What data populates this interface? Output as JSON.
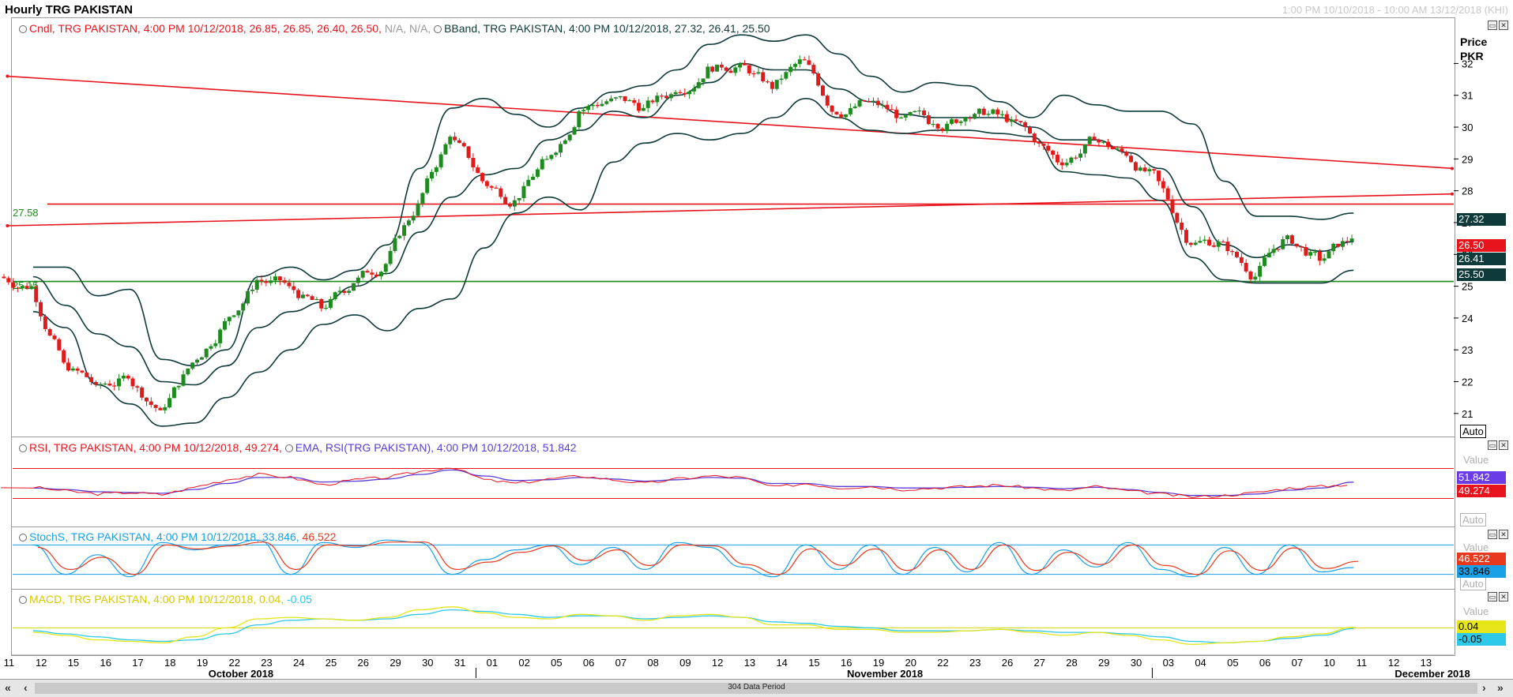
{
  "header": {
    "title": "Hourly TRG PAKISTAN",
    "date_range": "1:00 PM 10/10/2018 - 10:00 AM 13/12/2018 (KHI)"
  },
  "price_panel": {
    "legend_candle": "Cndl, TRG PAKISTAN, 4:00 PM 10/12/2018, 26.85, 26.85, 26.40, 26.50, ",
    "legend_candle_na": "N/A, N/A, ",
    "legend_bband": "BBand, TRG PAKISTAN, 4:00 PM 10/12/2018, 27.32, 26.41, 25.50",
    "scale_title": "Price\nPKR",
    "scale_ticks": [
      "21",
      "22",
      "23",
      "24",
      "25",
      "26",
      "27",
      "28",
      "29",
      "30",
      "31",
      "32"
    ],
    "hline_upper_label": "27.58",
    "hline_lower_label": "25.15",
    "tags": {
      "bb_upper": "27.32",
      "close": "26.50",
      "bb_mid": "26.41",
      "bb_lower": "25.50"
    },
    "auto_label": "Auto"
  },
  "rsi_panel": {
    "legend_rsi": "RSI, TRG PAKISTAN, 4:00 PM 10/12/2018, 49.274, ",
    "legend_ema": "EMA, RSI(TRG PAKISTAN), 4:00 PM 10/12/2018, 51.842",
    "value_label": "Value",
    "tags": {
      "ema": "51.842",
      "rsi": "49.274"
    },
    "auto_label": "Auto"
  },
  "stoch_panel": {
    "legend_k": "StochS, TRG PAKISTAN, 4:00 PM 10/12/2018, 33.846, ",
    "legend_d": "46.522",
    "value_label": "Value",
    "tags": {
      "d": "46.522",
      "k": "33.846"
    },
    "auto_label": "Auto"
  },
  "macd_panel": {
    "legend_macd": "MACD, TRG PAKISTAN, 4:00 PM 10/12/2018, 0.04, ",
    "legend_signal": "-0.05",
    "value_label": "Value",
    "tags": {
      "macd": "0.04",
      "signal": "-0.05"
    }
  },
  "x_axis": {
    "ticks": [
      "11",
      "12",
      "15",
      "16",
      "17",
      "18",
      "19",
      "22",
      "23",
      "24",
      "25",
      "26",
      "29",
      "30",
      "31",
      "01",
      "02",
      "05",
      "06",
      "07",
      "08",
      "09",
      "12",
      "13",
      "14",
      "15",
      "16",
      "19",
      "20",
      "22",
      "23",
      "26",
      "27",
      "28",
      "29",
      "30",
      "03",
      "04",
      "05",
      "06",
      "07",
      "10",
      "11",
      "12",
      "13"
    ],
    "months": [
      "October 2018",
      "November 2018",
      "December 2018"
    ]
  },
  "scrollbar": {
    "label": "304 Data Period"
  },
  "colors": {
    "up": "#1f8a1f",
    "down": "#e01b1b",
    "bband": "#0f3a3a",
    "trend": "#e8141d",
    "support": "#1d8a1d",
    "rsi": "#e8141d",
    "ema": "#5a3cd6",
    "stoch_k": "#1aa0e6",
    "stoch_d": "#e8381d",
    "macd": "#e6e61a",
    "signal": "#2ec8e8"
  },
  "chart_data": [
    {
      "type": "candlestick",
      "title": "Hourly TRG PAKISTAN",
      "ylabel": "Price PKR",
      "ylim": [
        20.4,
        33.4
      ],
      "days": [
        "11",
        "12",
        "15",
        "16",
        "17",
        "18",
        "19",
        "22",
        "23",
        "24",
        "25",
        "26",
        "29",
        "30",
        "31",
        "01",
        "02",
        "05",
        "06",
        "07",
        "08",
        "09",
        "12",
        "13",
        "14",
        "15",
        "16",
        "19",
        "20",
        "22",
        "23",
        "26",
        "27",
        "28",
        "29",
        "30",
        "03",
        "04",
        "05",
        "06",
        "07",
        "10"
      ],
      "close": [
        25.0,
        22.6,
        21.9,
        22.1,
        21.1,
        22.6,
        23.9,
        25.2,
        25.0,
        24.3,
        25.1,
        25.7,
        27.6,
        29.7,
        28.3,
        27.7,
        29.0,
        30.5,
        30.9,
        30.6,
        31.1,
        31.9,
        32.0,
        31.2,
        32.1,
        30.4,
        30.8,
        30.3,
        30.1,
        30.3,
        30.4,
        29.8,
        28.8,
        29.6,
        29.1,
        28.3,
        26.3,
        26.4,
        25.3,
        26.6,
        25.8,
        26.5
      ],
      "bband_upper": [
        25.6,
        25.6,
        24.7,
        24.9,
        22.7,
        22.5,
        23.0,
        25.3,
        25.6,
        25.2,
        25.5,
        26.3,
        28.7,
        30.6,
        30.9,
        30.4,
        30.0,
        30.6,
        31.1,
        31.3,
        31.8,
        32.6,
        32.9,
        32.7,
        32.9,
        32.3,
        31.6,
        31.1,
        31.4,
        31.3,
        30.8,
        30.3,
        31.0,
        30.7,
        30.5,
        30.5,
        30.1,
        28.3,
        27.2,
        27.2,
        27.1,
        27.3
      ],
      "bband_middle": [
        25.3,
        24.4,
        23.5,
        23.1,
        22.0,
        21.9,
        22.5,
        23.7,
        24.2,
        24.5,
        25.0,
        25.4,
        26.7,
        27.8,
        28.5,
        28.7,
        29.6,
        29.9,
        30.5,
        30.3,
        31.0,
        31.4,
        32.0,
        31.8,
        31.8,
        31.2,
        30.8,
        30.4,
        30.3,
        30.3,
        30.3,
        30.0,
        29.6,
        29.6,
        29.2,
        28.7,
        27.5,
        26.3,
        25.9,
        26.3,
        26.1,
        26.4
      ],
      "bband_lower": [
        24.2,
        23.7,
        21.9,
        21.3,
        20.6,
        20.7,
        21.5,
        22.3,
        23.0,
        23.8,
        24.1,
        23.6,
        24.3,
        24.6,
        26.2,
        27.3,
        27.8,
        27.4,
        28.9,
        29.5,
        29.8,
        29.6,
        29.8,
        30.3,
        30.9,
        30.3,
        29.9,
        29.8,
        29.9,
        29.9,
        29.8,
        29.7,
        28.6,
        28.5,
        28.4,
        27.7,
        25.9,
        25.2,
        25.1,
        25.1,
        25.1,
        25.5
      ],
      "horizontal_lines": [
        27.58,
        25.15
      ],
      "trendlines": [
        {
          "from": {
            "x": "11",
            "y": 31.6
          },
          "to": {
            "x": "13",
            "y": 28.7
          }
        },
        {
          "from": {
            "x": "11",
            "y": 26.9
          },
          "to": {
            "x": "13",
            "y": 27.9
          }
        }
      ],
      "last": {
        "time": "4:00 PM 10/12/2018",
        "open": 26.85,
        "high": 26.85,
        "low": 26.4,
        "close": 26.5,
        "bband_upper": 27.32,
        "bband_middle": 26.41,
        "bband_lower": 25.5
      }
    },
    {
      "type": "line",
      "title": "RSI, TRG PAKISTAN",
      "series": [
        {
          "name": "RSI",
          "values": [
            45,
            40,
            36,
            38,
            35,
            45,
            55,
            62,
            58,
            48,
            55,
            58,
            66,
            72,
            55,
            50,
            56,
            60,
            55,
            50,
            56,
            60,
            58,
            45,
            50,
            44,
            46,
            42,
            44,
            46,
            48,
            44,
            40,
            46,
            40,
            36,
            32,
            34,
            38,
            44,
            46,
            49.274
          ]
        },
        {
          "name": "EMA, RSI(TRG PAKISTAN)",
          "values": [
            44,
            42,
            39,
            38,
            37,
            42,
            50,
            58,
            58,
            52,
            53,
            56,
            62,
            68,
            60,
            54,
            55,
            58,
            56,
            53,
            55,
            58,
            57,
            50,
            50,
            46,
            46,
            44,
            44,
            45,
            46,
            45,
            43,
            45,
            42,
            38,
            34,
            34,
            36,
            41,
            44,
            51.842
          ]
        }
      ],
      "levels": [
        70,
        30
      ],
      "last": {
        "rsi": 49.274,
        "ema": 51.842
      }
    },
    {
      "type": "line",
      "title": "StochS, TRG PAKISTAN",
      "series": [
        {
          "name": "%K",
          "values": [
            80,
            20,
            60,
            15,
            85,
            70,
            80,
            90,
            20,
            85,
            75,
            90,
            85,
            20,
            50,
            70,
            80,
            40,
            75,
            30,
            85,
            75,
            35,
            15,
            80,
            30,
            80,
            20,
            75,
            25,
            85,
            20,
            70,
            35,
            85,
            30,
            15,
            75,
            20,
            80,
            25,
            33.846
          ]
        },
        {
          "name": "%D",
          "values": [
            75,
            30,
            55,
            20,
            80,
            72,
            78,
            86,
            30,
            80,
            78,
            86,
            86,
            30,
            45,
            65,
            78,
            48,
            70,
            38,
            80,
            78,
            40,
            20,
            72,
            38,
            72,
            28,
            70,
            30,
            80,
            28,
            65,
            40,
            80,
            38,
            20,
            68,
            28,
            74,
            32,
            46.522
          ]
        }
      ],
      "levels": [
        80,
        20
      ],
      "last": {
        "k": 33.846,
        "d": 46.522
      }
    },
    {
      "type": "line",
      "title": "MACD, TRG PAKISTAN",
      "series": [
        {
          "name": "MACD",
          "values": [
            -0.3,
            -0.5,
            -0.8,
            -0.9,
            -1.0,
            -0.6,
            0.0,
            0.6,
            0.7,
            0.6,
            0.5,
            0.7,
            1.2,
            1.4,
            1.0,
            0.7,
            0.6,
            0.9,
            0.8,
            0.5,
            0.8,
            0.9,
            0.7,
            0.2,
            0.2,
            -0.1,
            -0.1,
            -0.3,
            -0.3,
            -0.2,
            -0.1,
            -0.3,
            -0.5,
            -0.3,
            -0.5,
            -0.8,
            -1.1,
            -1.0,
            -0.9,
            -0.6,
            -0.4,
            0.04
          ]
        },
        {
          "name": "Signal",
          "values": [
            -0.2,
            -0.4,
            -0.6,
            -0.8,
            -0.9,
            -0.8,
            -0.4,
            0.2,
            0.5,
            0.6,
            0.5,
            0.6,
            0.9,
            1.2,
            1.1,
            0.9,
            0.7,
            0.8,
            0.8,
            0.6,
            0.7,
            0.8,
            0.7,
            0.4,
            0.3,
            0.1,
            0.0,
            -0.2,
            -0.2,
            -0.2,
            -0.1,
            -0.2,
            -0.3,
            -0.3,
            -0.4,
            -0.6,
            -0.9,
            -1.0,
            -0.9,
            -0.7,
            -0.5,
            -0.05
          ]
        }
      ],
      "last": {
        "macd": 0.04,
        "signal": -0.05
      }
    }
  ]
}
